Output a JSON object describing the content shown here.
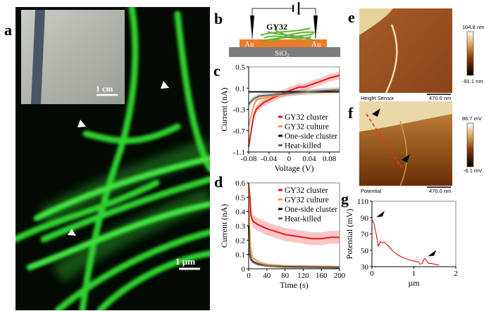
{
  "panels": {
    "a": {
      "label": "a",
      "inset_scale": "1 cm",
      "scale": "1 µm"
    },
    "b": {
      "label": "b",
      "sample": "GY32",
      "electrode_left": "Au",
      "electrode_right": "Au",
      "substrate": "SiO",
      "substrate_sub": "2"
    },
    "c": {
      "label": "c"
    },
    "d": {
      "label": "d"
    },
    "e": {
      "label": "e",
      "caption": "Height Sensor",
      "scale": "470.0 nm",
      "cbar_max": "104.8 nm",
      "cbar_min": "-91.1 nm"
    },
    "f": {
      "label": "f",
      "caption": "Potential",
      "scale": "470.0 nm",
      "cbar_max": "86.7 mV",
      "cbar_min": "-6.1 mV"
    },
    "g": {
      "label": "g"
    }
  },
  "colors": {
    "cluster": "#e8161b",
    "culture": "#f39a4c",
    "one_side": "#111111",
    "heat_killed": "#666666",
    "green": "#2fd12f"
  },
  "chart_data": [
    {
      "id": "c",
      "type": "line",
      "xlabel": "Voltage (V)",
      "ylabel": "Current (nA)",
      "xlim": [
        -0.08,
        0.1
      ],
      "ylim": [
        -1.1,
        0.5
      ],
      "xticks": [
        "-0.08",
        "-0.04",
        "0",
        "0.04",
        "0.08"
      ],
      "xtick_values": [
        -0.08,
        -0.04,
        0,
        0.04,
        0.08
      ],
      "yticks": [
        "0.5",
        "0.1",
        "-0.3",
        "-0.7",
        "-1.1"
      ],
      "ytick_values": [
        0.5,
        0.1,
        -0.3,
        -0.7,
        -1.1
      ],
      "legend": "bottom-right",
      "series": [
        {
          "name": "GY32 cluster",
          "color": "#e8161b",
          "x": [
            -0.08,
            -0.075,
            -0.07,
            -0.065,
            -0.06,
            -0.05,
            -0.04,
            -0.02,
            0,
            0.02,
            0.03,
            0.06,
            0.08,
            0.1
          ],
          "y": [
            -1.0,
            -0.7,
            -0.42,
            -0.3,
            -0.25,
            -0.17,
            -0.12,
            -0.03,
            0.05,
            0.12,
            0.12,
            0.22,
            0.29,
            0.34
          ]
        },
        {
          "name": "GY32 culture",
          "color": "#f39a4c",
          "x": [
            -0.08,
            -0.075,
            -0.07,
            -0.065,
            -0.06,
            -0.04,
            -0.02,
            0,
            0.04,
            0.1
          ],
          "y": [
            -0.6,
            -0.42,
            -0.22,
            -0.13,
            -0.1,
            -0.07,
            -0.03,
            0.0,
            0.03,
            0.05
          ]
        },
        {
          "name": "One-side cluster",
          "color": "#111111",
          "x": [
            -0.08,
            0.1
          ],
          "y": [
            0.03,
            0.03
          ]
        },
        {
          "name": "Heat-killed",
          "color": "#666666",
          "x": [
            -0.08,
            -0.07,
            -0.06,
            -0.04,
            0,
            0.05,
            0.1
          ],
          "y": [
            -0.2,
            -0.1,
            -0.05,
            -0.03,
            0.0,
            0.04,
            0.07
          ]
        }
      ]
    },
    {
      "id": "d",
      "type": "line",
      "xlabel": "Time (s)",
      "ylabel": "Current (nA)",
      "xlim": [
        0,
        200
      ],
      "ylim": [
        0,
        0.6
      ],
      "xticks": [
        "0",
        "40",
        "80",
        "120",
        "160",
        "200"
      ],
      "xtick_values": [
        0,
        40,
        80,
        120,
        160,
        200
      ],
      "yticks": [
        "0.6",
        "0.5",
        "0.4",
        "0.3",
        "0.2",
        "0.1",
        "0"
      ],
      "ytick_values": [
        0.6,
        0.5,
        0.4,
        0.3,
        0.2,
        0.1,
        0
      ],
      "legend": "top-right",
      "series": [
        {
          "name": "GY32 cluster",
          "color": "#e8161b",
          "x": [
            0,
            3,
            5,
            10,
            20,
            40,
            60,
            80,
            100,
            120,
            140,
            160,
            180,
            200
          ],
          "y": [
            0.6,
            0.5,
            0.37,
            0.33,
            0.31,
            0.28,
            0.26,
            0.24,
            0.23,
            0.22,
            0.21,
            0.21,
            0.22,
            0.22
          ]
        },
        {
          "name": "GY32 culture",
          "color": "#f39a4c",
          "x": [
            0,
            2,
            4,
            8,
            20,
            40,
            80,
            120,
            200
          ],
          "y": [
            0.6,
            0.3,
            0.15,
            0.08,
            0.05,
            0.03,
            0.02,
            0.018,
            0.015
          ]
        },
        {
          "name": "One-side cluster",
          "color": "#111111",
          "x": [
            0,
            2,
            5,
            10,
            20,
            40,
            80,
            200
          ],
          "y": [
            0.3,
            0.12,
            0.07,
            0.05,
            0.035,
            0.02,
            0.015,
            0.01
          ]
        },
        {
          "name": "Heat-killed",
          "color": "#666666",
          "x": [
            0,
            2,
            5,
            10,
            20,
            40,
            80,
            200
          ],
          "y": [
            0.25,
            0.1,
            0.06,
            0.045,
            0.03,
            0.02,
            0.012,
            0.008
          ]
        }
      ]
    },
    {
      "id": "g",
      "type": "line",
      "xlabel": "µm",
      "ylabel": "Potential (mV)",
      "xlim": [
        0,
        2
      ],
      "ylim": [
        30,
        110
      ],
      "xticks": [
        "0",
        "1",
        "2"
      ],
      "xtick_values": [
        0,
        1,
        2
      ],
      "yticks": [
        "110",
        "90",
        "70",
        "50",
        "30"
      ],
      "ytick_values": [
        110,
        90,
        70,
        50,
        30
      ],
      "series": [
        {
          "name": "",
          "color": "#e8161b",
          "x": [
            0,
            0.05,
            0.1,
            0.13,
            0.15,
            0.2,
            0.25,
            0.3,
            0.35,
            0.4,
            0.5,
            0.6,
            0.7,
            0.8,
            0.9,
            1.0,
            1.1,
            1.15,
            1.2,
            1.25,
            1.3,
            1.35,
            1.4,
            1.5,
            1.6
          ],
          "y": [
            88,
            82,
            70,
            62,
            55,
            61,
            59,
            60,
            57,
            55,
            49,
            45,
            42,
            40,
            38,
            37,
            36,
            33,
            34,
            40,
            38,
            34,
            34,
            33,
            32
          ]
        }
      ],
      "markers": [
        {
          "x": 0.05,
          "y": 88
        },
        {
          "x": 1.28,
          "y": 40
        }
      ]
    }
  ]
}
